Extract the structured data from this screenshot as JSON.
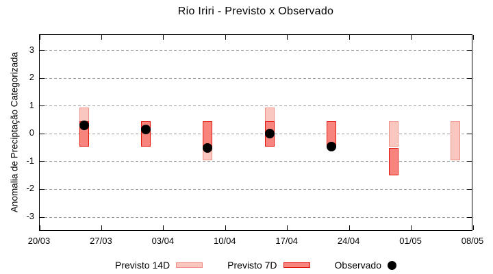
{
  "title": "Rio Iriri - Previsto x Observado",
  "y_axis": {
    "label": "Anomalia de Preciptação Categorizada"
  },
  "colors": {
    "frame": "#000000",
    "grid": "#9a9a9a",
    "previsto14d_fill": "#f9c7c0",
    "previsto14d_border": "#ee9184",
    "previsto7d_fill": "#f8857d",
    "previsto7d_border": "#e2150c",
    "observado": "#000000"
  },
  "legend": {
    "items": [
      {
        "label": "Previsto 14D",
        "swatch": "bar",
        "fill": "#f9c7c0",
        "border": "#ee9184"
      },
      {
        "label": "Previsto 7D",
        "swatch": "bar",
        "fill": "#f8857d",
        "border": "#e2150c"
      },
      {
        "label": "Observado",
        "swatch": "dot",
        "fill": "#000000",
        "border": "#000000"
      }
    ]
  },
  "chart_data": {
    "type": "bar",
    "title": "Rio Iriri - Previsto x Observado",
    "xlabel": "",
    "ylabel": "Anomalia de Preciptação Categorizada",
    "ylim": [
      -3.55,
      3.55
    ],
    "grid": "horizontal-dashed-gray",
    "legend_position": "bottom",
    "y_ticks": [
      3,
      2,
      1,
      0,
      -1,
      -2,
      -3
    ],
    "x_ticks": [
      {
        "label": "20/03",
        "day": 0
      },
      {
        "label": "27/03",
        "day": 7
      },
      {
        "label": "03/04",
        "day": 14
      },
      {
        "label": "10/04",
        "day": 21
      },
      {
        "label": "17/04",
        "day": 28
      },
      {
        "label": "24/04",
        "day": 35
      },
      {
        "label": "01/05",
        "day": 42
      },
      {
        "label": "08/05",
        "day": 49
      }
    ],
    "x_span_days": 49,
    "series": [
      {
        "name": "Previsto 14D",
        "type": "range_bar",
        "fill": "#f9c7c0",
        "border": "#ee9184",
        "points": [
          {
            "day": 5,
            "low": -0.45,
            "high": 0.95
          },
          {
            "day": 12,
            "low": -0.45,
            "high": 0.45
          },
          {
            "day": 19,
            "low": -0.95,
            "high": 0.45
          },
          {
            "day": 26,
            "low": -0.45,
            "high": 0.95
          },
          {
            "day": 33,
            "low": -0.45,
            "high": 0.45
          },
          {
            "day": 40,
            "low": -0.45,
            "high": 0.45
          },
          {
            "day": 47,
            "low": -0.95,
            "high": 0.45
          }
        ]
      },
      {
        "name": "Previsto 7D",
        "type": "range_bar",
        "fill": "#f8857d",
        "border": "#e2150c",
        "points": [
          {
            "day": 5,
            "low": -0.45,
            "high": 0.45
          },
          {
            "day": 12,
            "low": -0.45,
            "high": 0.45
          },
          {
            "day": 19,
            "low": -0.45,
            "high": 0.45
          },
          {
            "day": 26,
            "low": -0.45,
            "high": 0.45
          },
          {
            "day": 33,
            "low": -0.45,
            "high": 0.45
          },
          {
            "day": 40,
            "low": -1.5,
            "high": -0.5
          }
        ]
      },
      {
        "name": "Observado",
        "type": "scatter",
        "color": "#000000",
        "points": [
          {
            "day": 5,
            "value": 0.3
          },
          {
            "day": 12,
            "value": 0.15
          },
          {
            "day": 19,
            "value": -0.5
          },
          {
            "day": 26,
            "value": 0.0
          },
          {
            "day": 33,
            "value": -0.45
          }
        ]
      }
    ]
  }
}
